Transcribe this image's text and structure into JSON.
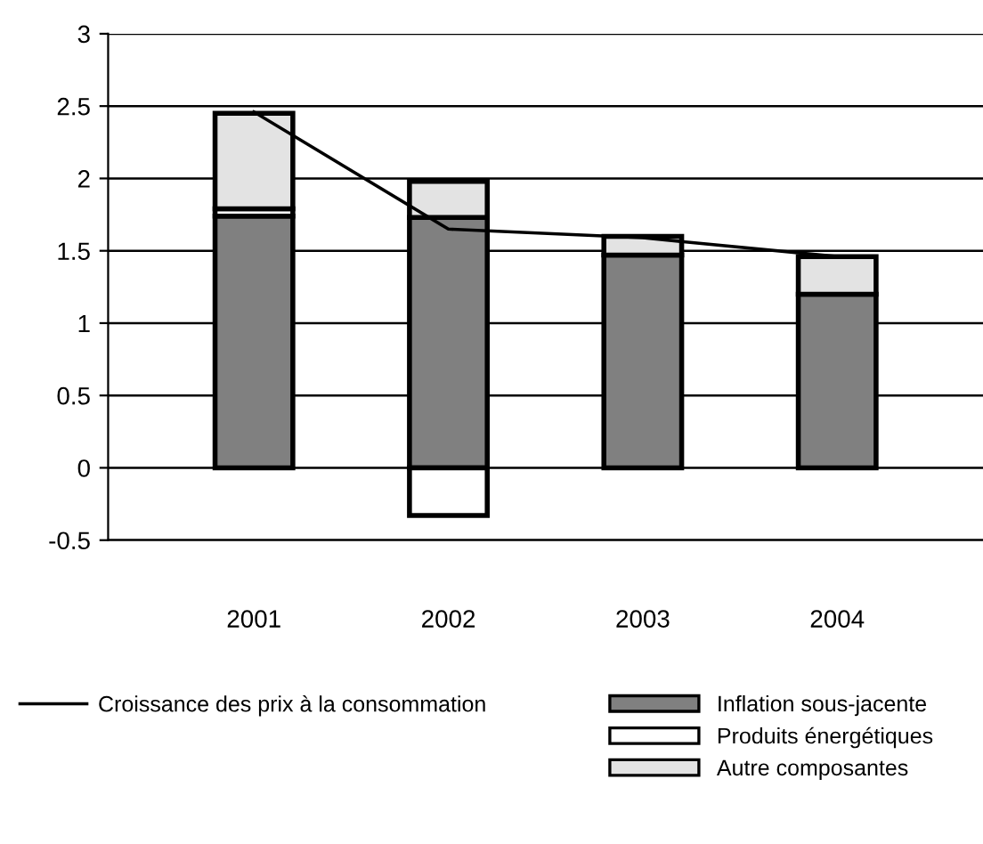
{
  "chart_data": {
    "type": "bar",
    "stacked": true,
    "categories": [
      "2001",
      "2002",
      "2003",
      "2004"
    ],
    "series": [
      {
        "name": "Inflation sous-jacente",
        "color": "#808080",
        "values": [
          1.74,
          1.73,
          1.47,
          1.2
        ]
      },
      {
        "name": "Produits énergétiques",
        "color": "#ffffff",
        "values": [
          0.05,
          -0.33,
          null,
          null
        ]
      },
      {
        "name": "Autre composantes",
        "color": "#e3e3e3",
        "values": [
          0.66,
          0.25,
          0.13,
          0.26
        ]
      },
      {
        "name": "Croissance des prix à la consommation",
        "type": "line",
        "color": "#000000",
        "values": [
          2.46,
          1.65,
          1.59,
          1.46
        ]
      }
    ],
    "ylim": [
      -0.5,
      3
    ],
    "yticks": [
      -0.5,
      0,
      0.5,
      1,
      1.5,
      2,
      2.5,
      3
    ],
    "grid": "y",
    "legend": "bottom"
  }
}
